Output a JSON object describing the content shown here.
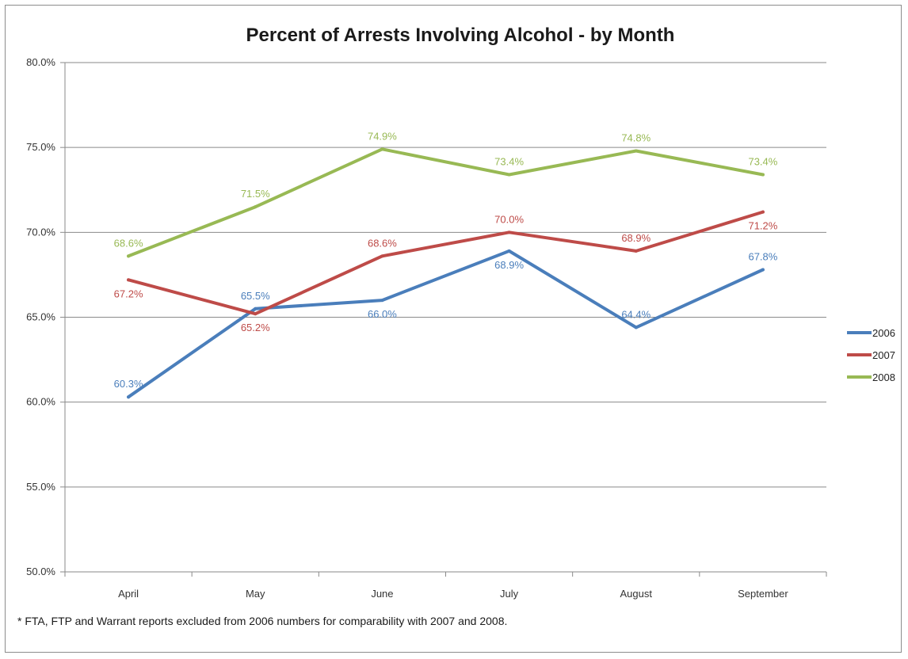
{
  "chart_data": {
    "type": "line",
    "title": "Percent of Arrests Involving Alcohol - by Month",
    "xlabel": "",
    "ylabel": "",
    "categories": [
      "April",
      "May",
      "June",
      "July",
      "August",
      "September"
    ],
    "ylim": [
      50,
      80
    ],
    "yticks": [
      "50.0%",
      "55.0%",
      "60.0%",
      "65.0%",
      "70.0%",
      "75.0%",
      "80.0%"
    ],
    "grid": true,
    "legend_position": "right",
    "series": [
      {
        "name": "2006",
        "color": "#4a7ebb",
        "values": [
          60.3,
          65.5,
          66.0,
          68.9,
          64.4,
          67.8
        ],
        "labels": [
          "60.3%",
          "65.5%",
          "66.0%",
          "68.9%",
          "64.4%",
          "67.8%"
        ]
      },
      {
        "name": "2007",
        "color": "#be4b48",
        "values": [
          67.2,
          65.2,
          68.6,
          70.0,
          68.9,
          71.2
        ],
        "labels": [
          "67.2%",
          "65.2%",
          "68.6%",
          "70.0%",
          "68.9%",
          "71.2%"
        ]
      },
      {
        "name": "2008",
        "color": "#98b954",
        "values": [
          68.6,
          71.5,
          74.9,
          73.4,
          74.8,
          73.4
        ],
        "labels": [
          "68.6%",
          "71.5%",
          "74.9%",
          "73.4%",
          "74.8%",
          "73.4%"
        ]
      }
    ],
    "footnote": "* FTA, FTP and Warrant reports excluded from 2006 numbers for comparability with 2007 and 2008."
  }
}
